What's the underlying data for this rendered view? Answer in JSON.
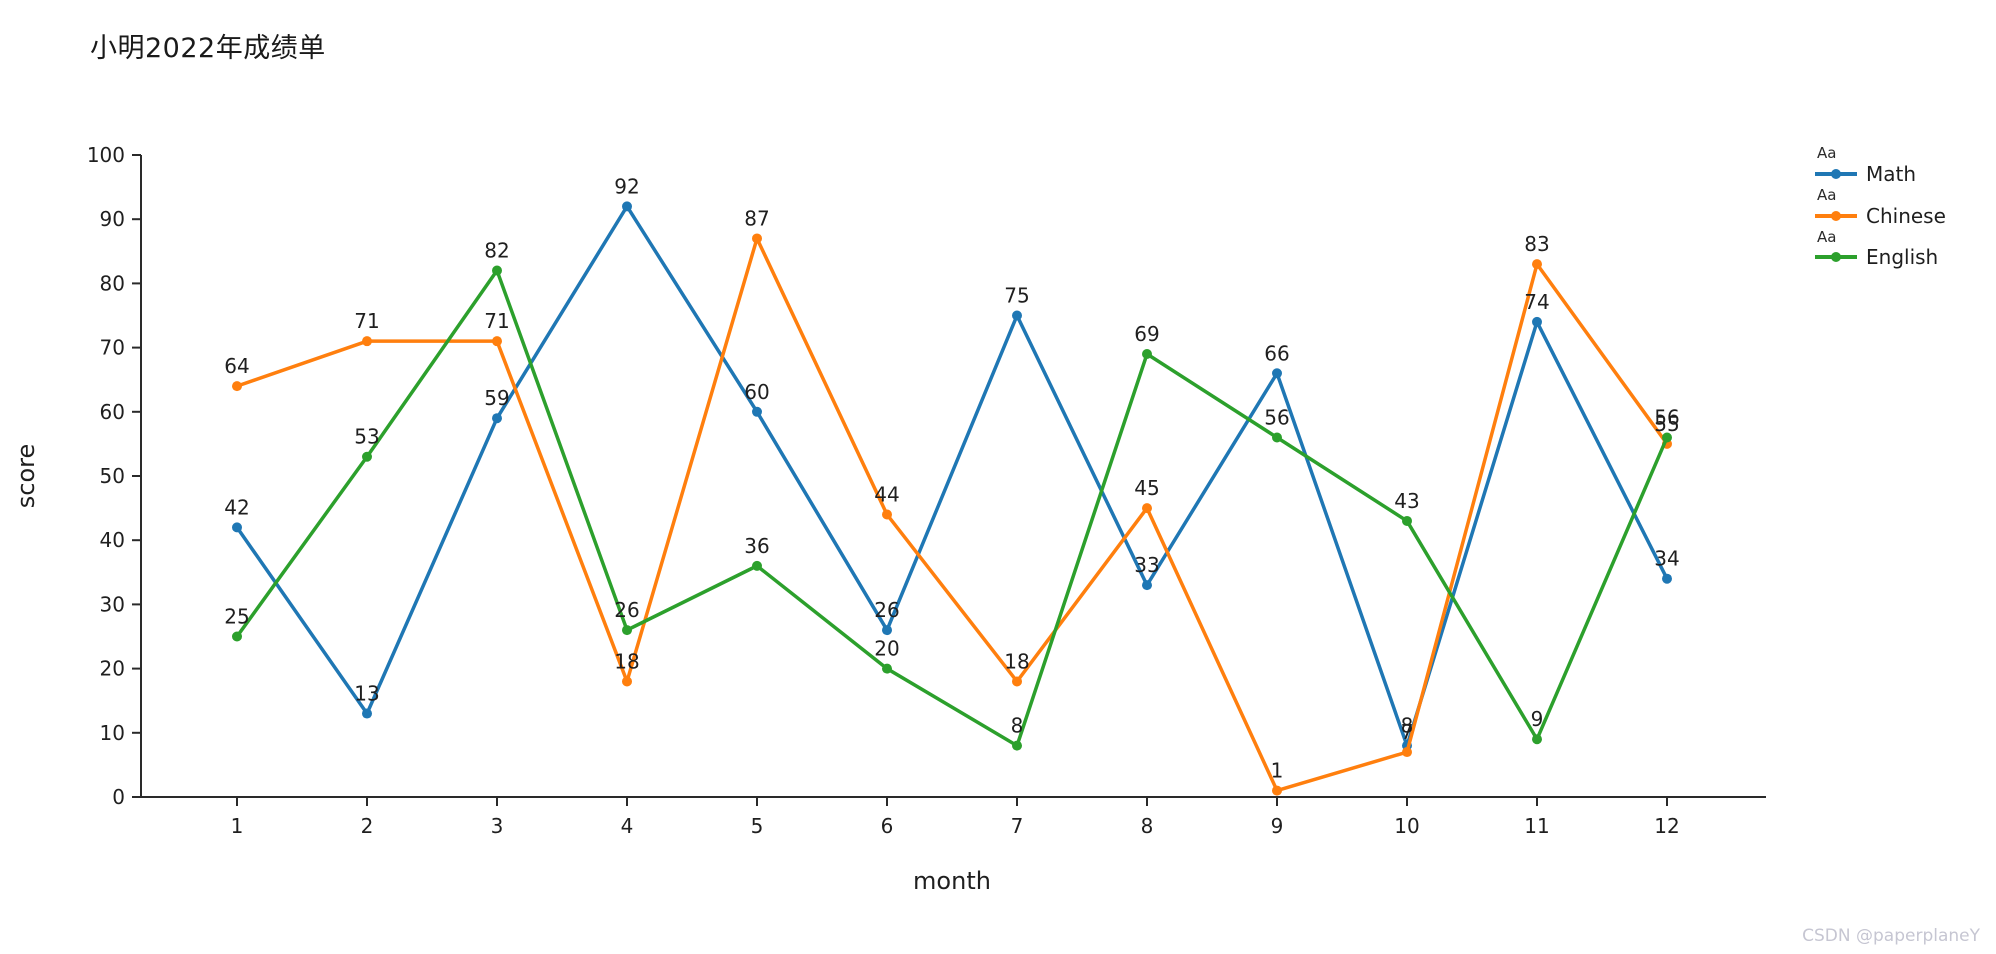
{
  "page": {
    "title": "小明2022年成绩单",
    "watermark": "CSDN @paperplaneY"
  },
  "legend": {
    "style_hint": "Aa",
    "position": "right"
  },
  "chart_data": {
    "type": "line",
    "title": "小明2022年成绩单",
    "xlabel": "month",
    "ylabel": "score",
    "x": [
      1,
      2,
      3,
      4,
      5,
      6,
      7,
      8,
      9,
      10,
      11,
      12
    ],
    "ylim": [
      0,
      100
    ],
    "yticks": [
      0,
      10,
      20,
      30,
      40,
      50,
      60,
      70,
      80,
      90,
      100
    ],
    "grid": false,
    "legend_position": "right",
    "marker": "circle",
    "point_labels": true,
    "series": [
      {
        "name": "Math",
        "color": "#1f77b4",
        "values": [
          42,
          13,
          59,
          92,
          60,
          26,
          75,
          33,
          66,
          8,
          74,
          34
        ]
      },
      {
        "name": "Chinese",
        "color": "#ff7f0e",
        "values": [
          64,
          71,
          71,
          18,
          87,
          44,
          18,
          45,
          1,
          7,
          83,
          55
        ]
      },
      {
        "name": "English",
        "color": "#2ca02c",
        "values": [
          25,
          53,
          82,
          26,
          36,
          20,
          8,
          69,
          56,
          43,
          9,
          56
        ]
      }
    ]
  }
}
